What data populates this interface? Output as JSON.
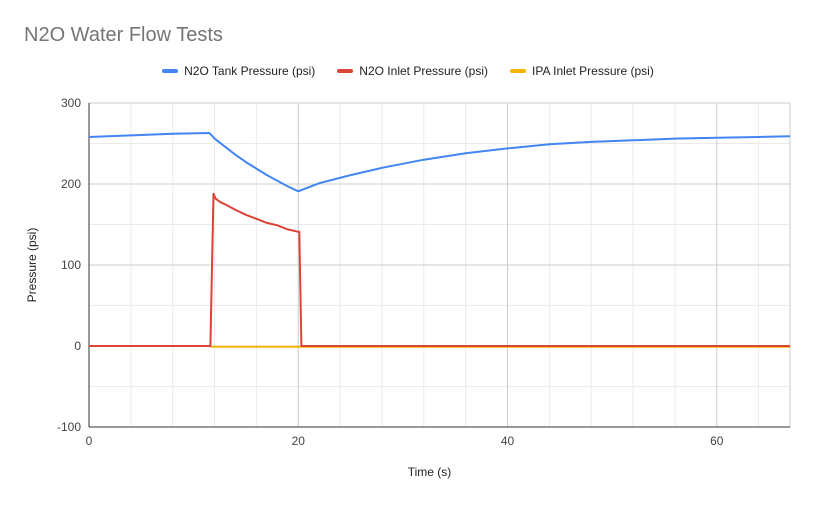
{
  "chart_data": {
    "type": "line",
    "title": "N2O Water Flow Tests",
    "xlabel": "Time (s)",
    "ylabel": "Pressure (psi)",
    "xlim": [
      0,
      67
    ],
    "ylim": [
      -100,
      300
    ],
    "x_ticks": [
      0,
      20,
      40,
      60
    ],
    "y_ticks": [
      -100,
      0,
      100,
      200,
      300
    ],
    "grid": true,
    "legend_position": "top",
    "series": [
      {
        "name": "N2O Tank Pressure (psi)",
        "color": "#4285f4",
        "x": [
          0,
          4,
          8,
          11.5,
          12,
          13,
          14,
          15,
          16,
          17,
          18,
          19,
          20,
          22,
          25,
          28,
          32,
          36,
          40,
          44,
          48,
          52,
          56,
          60,
          64,
          67
        ],
        "y": [
          258,
          260,
          262,
          263,
          256,
          246,
          236,
          227,
          219,
          211,
          204,
          197,
          191,
          201,
          211,
          220,
          230,
          238,
          244,
          249,
          252,
          254,
          256,
          257,
          258,
          259
        ]
      },
      {
        "name": "N2O Inlet Pressure (psi)",
        "color": "#db4437",
        "x": [
          0,
          11.6,
          11.9,
          12.1,
          12.5,
          13,
          14,
          15,
          16,
          17,
          18,
          19,
          20,
          20.1,
          20.3,
          67
        ],
        "y": [
          0,
          0,
          188,
          182,
          178,
          175,
          168,
          162,
          157,
          152,
          149,
          144,
          141,
          141,
          0,
          0
        ]
      },
      {
        "name": "IPA Inlet Pressure (psi)",
        "color": "#f4b400",
        "x": [
          0,
          11.5,
          11.8,
          20,
          20.3,
          67
        ],
        "y": [
          0,
          0,
          -1,
          -1,
          -1,
          -1
        ]
      }
    ]
  }
}
